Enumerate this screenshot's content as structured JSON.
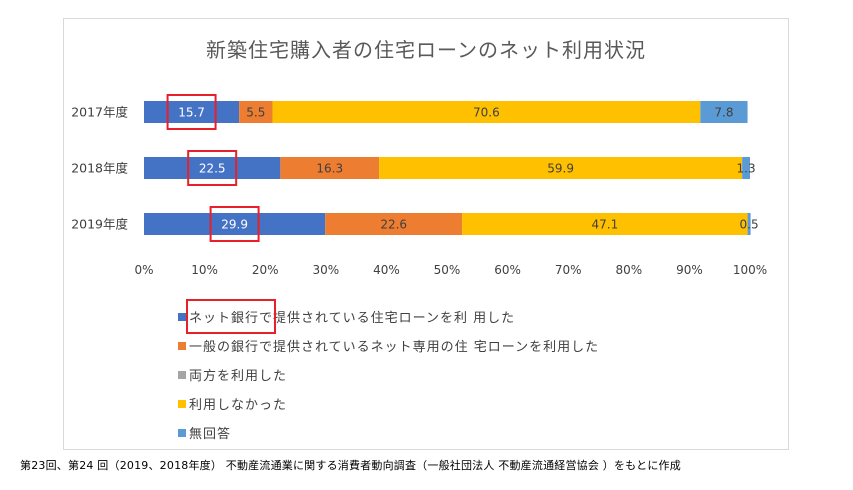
{
  "chart_data": {
    "type": "bar",
    "orientation": "horizontal",
    "stacked": true,
    "title": "新築住宅購入者の住宅ローンのネット利用状況",
    "categories": [
      "2017年度",
      "2018年度",
      "2019年度"
    ],
    "series": [
      {
        "name": "ネット銀行で提供されている住宅ローンを利 用した",
        "color": "#4472c4",
        "values": [
          15.7,
          22.5,
          29.9
        ],
        "labels": [
          "15.7",
          "22.5",
          "29.9"
        ]
      },
      {
        "name": "一般の銀行で提供されているネット専用の住 宅ローンを利用した",
        "color": "#ed7d31",
        "values": [
          5.5,
          16.3,
          22.6
        ],
        "labels": [
          "5.5",
          "16.3",
          "22.6"
        ]
      },
      {
        "name": "両方を利用した",
        "color": "#a5a5a5",
        "values": [
          0,
          0,
          0
        ],
        "labels": [
          "",
          "",
          ""
        ]
      },
      {
        "name": "利用しなかった",
        "color": "#ffc000",
        "values": [
          70.6,
          59.9,
          47.1
        ],
        "labels": [
          "70.6",
          "59.9",
          "47.1"
        ]
      },
      {
        "name": "無回答",
        "color": "#5b9bd5",
        "values": [
          7.8,
          1.3,
          0.5
        ],
        "labels": [
          "7.8",
          "1.3",
          "0.5"
        ]
      }
    ],
    "xticks": [
      "0%",
      "10%",
      "20%",
      "30%",
      "40%",
      "50%",
      "60%",
      "70%",
      "80%",
      "90%",
      "100%"
    ],
    "xlim": [
      0,
      100
    ],
    "grid": false,
    "legend_position": "bottom"
  },
  "footer": "第23回、第24 回（2019、2018年度） 不動産流通業に関する消費者動向調査（一般社団法人 不動産流通経営協会 ）をもとに作成"
}
